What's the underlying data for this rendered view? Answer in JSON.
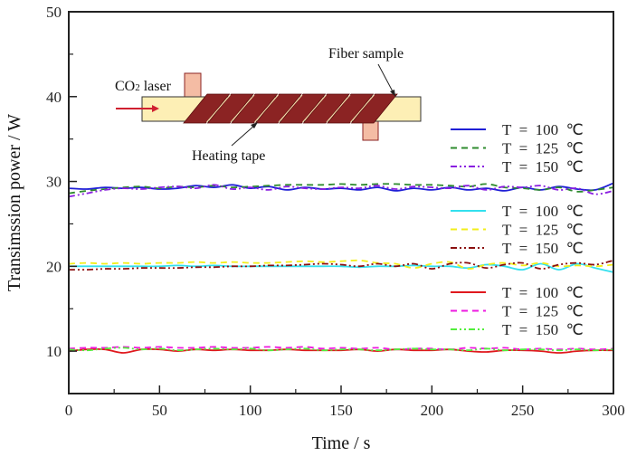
{
  "chart_data": {
    "type": "line",
    "title": "",
    "xlabel": "Time / s",
    "ylabel": "Transimssion power / W",
    "xlim": [
      0,
      300
    ],
    "ylim": [
      5,
      50
    ],
    "xticks": [
      0,
      50,
      100,
      150,
      200,
      250,
      300
    ],
    "yticks": [
      10,
      20,
      30,
      40,
      50
    ],
    "grid": false,
    "x": [
      0,
      10,
      20,
      30,
      40,
      50,
      60,
      70,
      80,
      90,
      100,
      110,
      120,
      130,
      140,
      150,
      160,
      170,
      180,
      190,
      200,
      210,
      220,
      230,
      240,
      250,
      260,
      270,
      280,
      290,
      300
    ],
    "series": [
      {
        "name": "T = 100 ℃",
        "group": "30 W",
        "color": "#1f1fd6",
        "dash": "solid",
        "values": [
          29.2,
          29.1,
          29.3,
          29.2,
          29.3,
          29.1,
          29.2,
          29.5,
          29.3,
          29.6,
          29.2,
          29.4,
          29.0,
          29.3,
          29.1,
          29.2,
          29.0,
          29.3,
          28.9,
          29.2,
          29.0,
          29.3,
          29.0,
          29.2,
          28.9,
          29.3,
          29.0,
          29.4,
          29.1,
          29.0,
          29.8
        ]
      },
      {
        "name": "T = 125 ℃",
        "group": "30 W",
        "color": "#2e8b2e",
        "dash": "dash",
        "values": [
          28.6,
          28.9,
          29.1,
          29.3,
          29.4,
          29.2,
          29.4,
          29.3,
          29.5,
          29.3,
          29.4,
          29.5,
          29.6,
          29.6,
          29.6,
          29.7,
          29.6,
          29.7,
          29.7,
          29.6,
          29.6,
          29.5,
          29.4,
          29.7,
          29.3,
          29.2,
          29.0,
          29.3,
          28.8,
          29.0,
          29.3
        ]
      },
      {
        "name": "T = 150 ℃",
        "group": "30 W",
        "color": "#8a1ee0",
        "dash": "dashdotdot",
        "values": [
          28.2,
          28.6,
          29.0,
          29.2,
          29.1,
          29.3,
          29.4,
          29.2,
          29.6,
          29.1,
          29.3,
          29.0,
          29.4,
          29.2,
          29.1,
          29.3,
          29.2,
          29.5,
          29.1,
          29.4,
          29.3,
          29.2,
          29.5,
          29.0,
          29.4,
          29.3,
          29.5,
          29.0,
          29.2,
          28.5,
          28.9
        ]
      },
      {
        "name": "T = 100 ℃",
        "group": "20 W",
        "color": "#33e0ee",
        "dash": "solid",
        "values": [
          20.0,
          20.0,
          20.0,
          20.0,
          20.0,
          20.0,
          20.1,
          20.0,
          20.1,
          20.0,
          20.0,
          20.0,
          20.0,
          20.0,
          20.0,
          20.0,
          19.9,
          20.0,
          20.0,
          20.1,
          20.0,
          20.0,
          19.8,
          20.2,
          20.0,
          19.6,
          20.3,
          19.6,
          20.3,
          19.8,
          19.3
        ]
      },
      {
        "name": "T = 125 ℃",
        "group": "20 W",
        "color": "#f2ee1a",
        "dash": "dash",
        "values": [
          20.3,
          20.4,
          20.3,
          20.4,
          20.3,
          20.4,
          20.4,
          20.5,
          20.4,
          20.5,
          20.4,
          20.4,
          20.5,
          20.6,
          20.5,
          20.6,
          20.7,
          20.4,
          20.3,
          19.8,
          20.3,
          20.5,
          19.7,
          20.2,
          20.4,
          20.1,
          20.4,
          20.0,
          20.1,
          20.0,
          20.2
        ]
      },
      {
        "name": "T = 150 ℃",
        "group": "20 W",
        "color": "#8b0f0f",
        "dash": "dashdotdot",
        "values": [
          19.6,
          19.6,
          19.7,
          19.7,
          19.8,
          19.8,
          19.8,
          19.9,
          19.9,
          20.0,
          20.0,
          20.1,
          20.1,
          20.2,
          20.3,
          20.2,
          20.0,
          20.3,
          20.0,
          20.3,
          19.7,
          20.3,
          20.4,
          19.8,
          20.2,
          20.4,
          19.7,
          20.2,
          20.4,
          20.2,
          20.7
        ]
      },
      {
        "name": "T = 100 ℃",
        "group": "10 W",
        "color": "#e0191e",
        "dash": "solid",
        "values": [
          10.0,
          10.2,
          10.2,
          9.8,
          10.2,
          10.2,
          10.0,
          10.2,
          10.1,
          10.2,
          10.1,
          10.1,
          10.2,
          10.1,
          10.1,
          10.1,
          10.2,
          10.0,
          10.2,
          10.1,
          10.1,
          10.2,
          10.0,
          9.9,
          10.1,
          10.1,
          10.0,
          9.8,
          10.0,
          10.1,
          10.1
        ]
      },
      {
        "name": "T = 125 ℃",
        "group": "10 W",
        "color": "#ee1ae0",
        "dash": "dash",
        "values": [
          10.3,
          10.4,
          10.4,
          10.5,
          10.4,
          10.5,
          10.4,
          10.4,
          10.5,
          10.4,
          10.4,
          10.5,
          10.4,
          10.5,
          10.3,
          10.4,
          10.3,
          10.4,
          10.2,
          10.3,
          10.3,
          10.2,
          10.4,
          10.3,
          10.4,
          10.2,
          10.3,
          10.2,
          10.3,
          10.2,
          10.3
        ]
      },
      {
        "name": "T = 150 ℃",
        "group": "10 W",
        "color": "#52ee3c",
        "dash": "dashdotdot",
        "values": [
          10.2,
          10.1,
          10.3,
          10.4,
          10.2,
          10.3,
          10.1,
          10.2,
          10.3,
          10.2,
          10.3,
          10.1,
          10.2,
          10.3,
          10.1,
          10.2,
          10.2,
          10.1,
          10.2,
          10.3,
          10.2,
          10.2,
          10.1,
          10.3,
          10.1,
          10.2,
          10.2,
          10.1,
          10.2,
          10.1,
          10.2
        ]
      }
    ],
    "legends": [
      {
        "placement": "right",
        "series_group": "30 W",
        "entries": [
          "T = 100 ℃",
          "T = 125 ℃",
          "T = 150 ℃"
        ]
      },
      {
        "placement": "right",
        "series_group": "20 W",
        "entries": [
          "T = 100 ℃",
          "T = 125 ℃",
          "T = 150 ℃"
        ]
      },
      {
        "placement": "right",
        "series_group": "10 W",
        "entries": [
          "T = 100 ℃",
          "T = 125 ℃",
          "T = 150 ℃"
        ]
      }
    ],
    "inset": {
      "placement": "top-left",
      "labels": {
        "laser": "CO2 laser",
        "laser_main": "CO",
        "laser_sub": "2",
        "laser_rest": " laser",
        "fiber": "Fiber sample",
        "heater": "Heating tape"
      },
      "colors": {
        "fiber": "#fdefb5",
        "tape": "#8b2323",
        "mount": "#f2b8a0",
        "arrow": "#d02030"
      }
    }
  }
}
